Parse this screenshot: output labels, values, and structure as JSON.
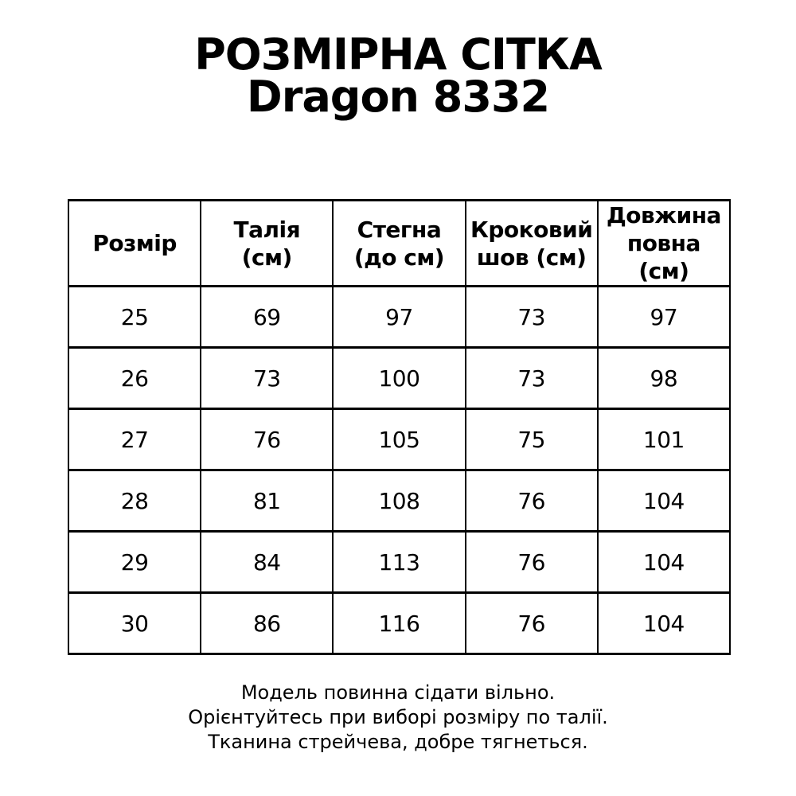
{
  "title": {
    "line1": "РОЗМІРНА СІТКА",
    "line2": "Dragon 8332"
  },
  "table": {
    "headers": [
      "Розмір",
      "Талія\n(см)",
      "Стегна\n(до см)",
      "Кроковий\nшов (см)",
      "Довжина\nповна (см)"
    ],
    "rows": [
      [
        "25",
        "69",
        "97",
        "73",
        "97"
      ],
      [
        "26",
        "73",
        "100",
        "73",
        "98"
      ],
      [
        "27",
        "76",
        "105",
        "75",
        "101"
      ],
      [
        "28",
        "81",
        "108",
        "76",
        "104"
      ],
      [
        "29",
        "84",
        "113",
        "76",
        "104"
      ],
      [
        "30",
        "86",
        "116",
        "76",
        "104"
      ]
    ]
  },
  "footer": {
    "line1": "Модель повинна сідати вільно.",
    "line2": "Орієнтуйтесь при виборі розміру по талії.",
    "line3": "Тканина стрейчева, добре тягнеться."
  },
  "colors": {
    "text": "#000000",
    "background": "#ffffff",
    "border": "#000000"
  }
}
